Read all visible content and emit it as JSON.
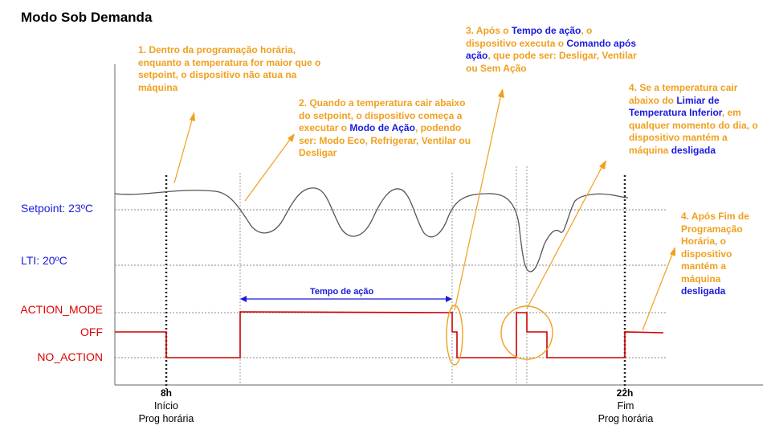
{
  "title": "Modo Sob Demanda",
  "y_labels": {
    "setpoint": "Setpoint: 23ºC",
    "lti": "LTI: 20ºC",
    "action_mode": "ACTION_MODE",
    "off": "OFF",
    "no_action": "NO_ACTION"
  },
  "time_marks": {
    "start": {
      "time": "8h",
      "line1": "Início",
      "line2": "Prog horária"
    },
    "end": {
      "time": "22h",
      "line1": "Fim",
      "line2": "Prog horária"
    }
  },
  "tempo_label": "Tempo de ação",
  "annotations": {
    "a1": {
      "text": "1. Dentro da programação horária, enquanto a temperatura for maior que o setpoint, o dispositivo não atua na máquina"
    },
    "a2": {
      "p1": "2. Quando a temperatura cair abaixo do setpoint, o dispositivo começa a executar o ",
      "h1": "Modo de Ação",
      "p2": ", podendo ser: Modo Eco, Refrigerar, Ventilar ou Desligar"
    },
    "a3": {
      "p1": "3. Após o ",
      "h1": "Tempo de ação",
      "p2": ", o dispositivo executa o ",
      "h2": "Comando após ação",
      "p3": ", que pode ser: Desligar, Ventilar ou Sem Ação"
    },
    "a4": {
      "p1": "4. Se a temperatura cair abaixo do ",
      "h1": "Limiar de Temperatura Inferior",
      "p2": ", em qualquer momento do dia, o dispositivo mantém a máquina ",
      "h2": "desligada"
    },
    "a5": {
      "p1": "4. Após Fim de Programação Horária, o dispositivo mantém a máquina ",
      "h1": "desligada"
    }
  },
  "colors": {
    "temperature_line": "#555555",
    "state_line": "#cc0000",
    "annotation": "#f0a020",
    "highlight": "#1a1adc",
    "setpoint_label": "#1a1adc",
    "state_label": "#dd0000"
  }
}
